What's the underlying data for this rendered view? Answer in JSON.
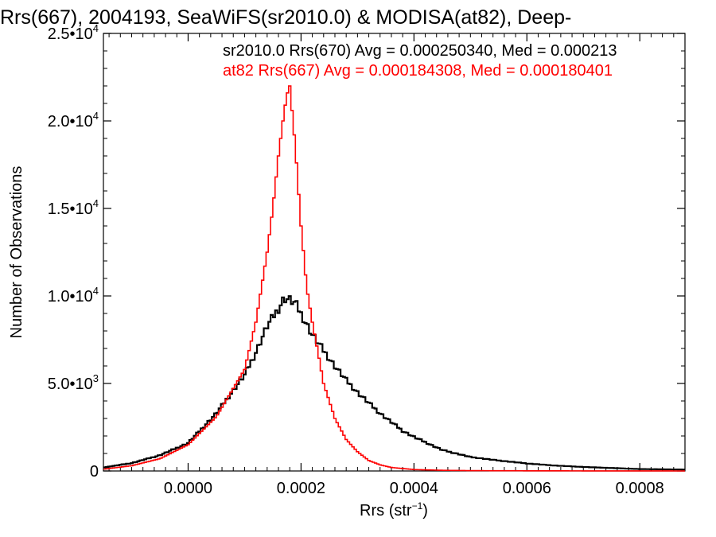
{
  "chart_data": {
    "type": "line",
    "title": "Rrs(667), 2004193, SeaWiFS(sr2010.0) & MODISA(at82), Deep-",
    "xlabel": "Rrs (str",
    "xlabel_sup": "−1",
    "xlabel_close": ")",
    "ylabel": "Number of Observations",
    "xlim": [
      -0.00015,
      0.00088
    ],
    "ylim": [
      0,
      25000
    ],
    "grid": false,
    "legend_placement": "top-right",
    "x_ticks": [
      {
        "value": 0.0,
        "label": "0.0000"
      },
      {
        "value": 0.0002,
        "label": "0.0002"
      },
      {
        "value": 0.0004,
        "label": "0.0004"
      },
      {
        "value": 0.0006,
        "label": "0.0006"
      },
      {
        "value": 0.0008,
        "label": "0.0008"
      }
    ],
    "y_ticks": [
      {
        "value": 0,
        "mant": "0",
        "exp": ""
      },
      {
        "value": 5000,
        "mant": "5.0•10",
        "exp": "3"
      },
      {
        "value": 10000,
        "mant": "1.0•10",
        "exp": "4"
      },
      {
        "value": 15000,
        "mant": "1.5•10",
        "exp": "4"
      },
      {
        "value": 20000,
        "mant": "2.0•10",
        "exp": "4"
      },
      {
        "value": 25000,
        "mant": "2.5•10",
        "exp": "4"
      }
    ],
    "annotations": [
      {
        "text": "sr2010.0 Rrs(670) Avg = 0.000250340, Med = 0.000213",
        "color": "#000000"
      },
      {
        "text": "at82 Rrs(667) Avg = 0.000184308, Med = 0.000180401",
        "color": "#ff0000"
      }
    ],
    "series": [
      {
        "color": "#000000",
        "style": "step",
        "x": [
          -0.00015,
          -0.0001,
          -5e-05,
          0.0,
          5e-05,
          0.0001,
          0.00012,
          0.00014,
          0.00016,
          0.00017,
          0.00018,
          0.00019,
          0.0002,
          0.00021,
          0.00022,
          0.00024,
          0.00026,
          0.00028,
          0.0003,
          0.00032,
          0.00034,
          0.00036,
          0.00038,
          0.0004,
          0.00045,
          0.0005,
          0.00055,
          0.0006,
          0.00065,
          0.0007,
          0.00075,
          0.0008,
          0.00088
        ],
        "y": [
          200,
          450,
          900,
          1600,
          3300,
          5500,
          6800,
          8300,
          9300,
          9900,
          9800,
          9600,
          9000,
          8400,
          7800,
          6900,
          6000,
          5200,
          4500,
          3900,
          3300,
          2800,
          2300,
          1950,
          1200,
          800,
          600,
          430,
          310,
          230,
          170,
          110,
          80
        ]
      },
      {
        "color": "#ff0000",
        "style": "step",
        "x": [
          -0.00015,
          -0.0001,
          -5e-05,
          0.0,
          5e-05,
          0.0001,
          0.00012,
          0.00014,
          0.00015,
          0.00016,
          0.00017,
          0.000175,
          0.00018,
          0.00019,
          0.0002,
          0.00021,
          0.00022,
          0.00023,
          0.00024,
          0.00026,
          0.00028,
          0.0003,
          0.00032,
          0.00034,
          0.00036,
          0.0004,
          0.00045,
          0.0005,
          0.0006,
          0.0007,
          0.00088
        ],
        "y": [
          100,
          300,
          700,
          1500,
          3100,
          5800,
          8500,
          12500,
          15000,
          18000,
          20500,
          21500,
          22000,
          18500,
          14000,
          10500,
          8500,
          6800,
          5000,
          3000,
          1800,
          1100,
          600,
          350,
          200,
          80,
          40,
          20,
          10,
          5,
          0
        ]
      }
    ]
  }
}
